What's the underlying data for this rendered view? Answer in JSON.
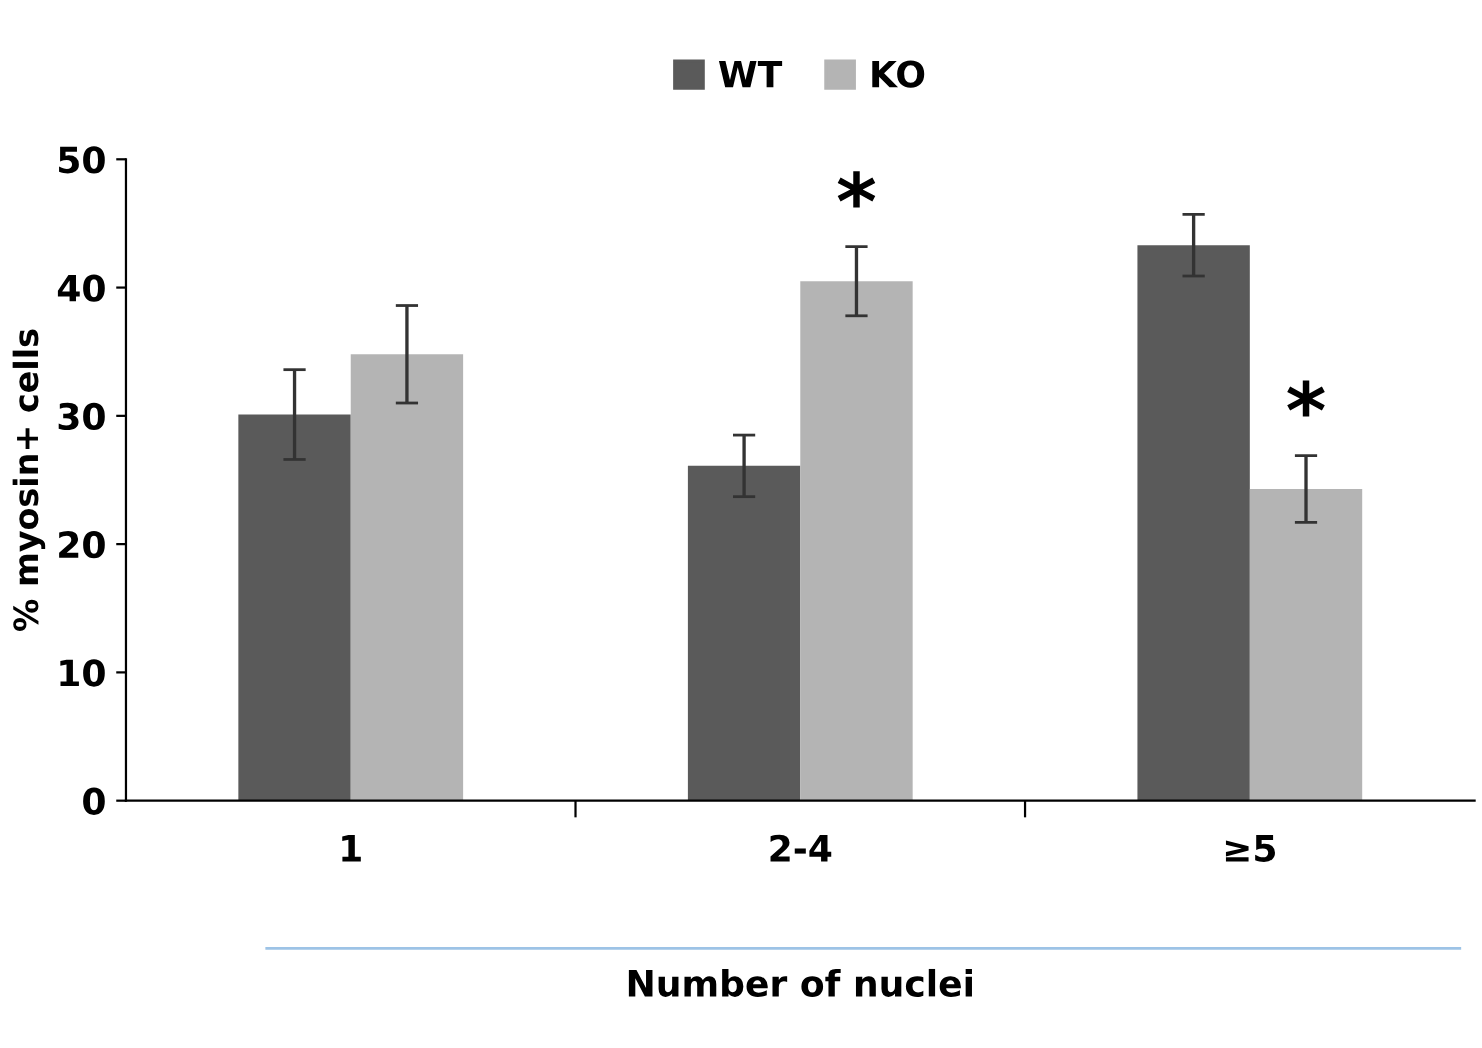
{
  "chart_data": {
    "type": "bar",
    "categories": [
      "1",
      "2-4",
      "≥5"
    ],
    "series": [
      {
        "name": "WT",
        "color": "#5a5a5a",
        "values": [
          30.1,
          26.1,
          43.3
        ],
        "errors": [
          3.5,
          2.4,
          2.4
        ]
      },
      {
        "name": "KO",
        "color": "#b4b4b4",
        "values": [
          34.8,
          40.5,
          24.3
        ],
        "errors": [
          3.8,
          2.7,
          2.6
        ]
      }
    ],
    "xlabel": "Number of nuclei",
    "ylabel": "% myosin+ cells",
    "ylim": [
      0,
      50
    ],
    "yticks": [
      0,
      10,
      20,
      30,
      40,
      50
    ],
    "grid": false,
    "legend": "top",
    "annotations": [
      "*",
      "*"
    ]
  }
}
